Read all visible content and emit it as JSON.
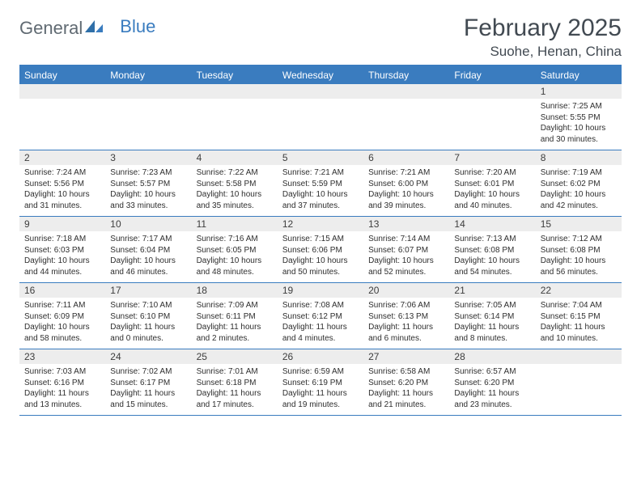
{
  "logo": {
    "text1": "General",
    "text2": "Blue"
  },
  "title": "February 2025",
  "location": "Suohe, Henan, China",
  "colors": {
    "brand_blue": "#3a7cbf",
    "header_bg": "#3a7cbf",
    "header_text": "#ffffff",
    "day_numbg": "#ededed",
    "text": "#2e2e2e",
    "title_text": "#424a52",
    "logo_gray": "#606a72"
  },
  "day_headers": [
    "Sunday",
    "Monday",
    "Tuesday",
    "Wednesday",
    "Thursday",
    "Friday",
    "Saturday"
  ],
  "layout": {
    "num_weeks": 5,
    "first_day_column": 6,
    "days_in_month": 28
  },
  "days": {
    "1": {
      "sunrise": "7:25 AM",
      "sunset": "5:55 PM",
      "daylight": "10 hours and 30 minutes."
    },
    "2": {
      "sunrise": "7:24 AM",
      "sunset": "5:56 PM",
      "daylight": "10 hours and 31 minutes."
    },
    "3": {
      "sunrise": "7:23 AM",
      "sunset": "5:57 PM",
      "daylight": "10 hours and 33 minutes."
    },
    "4": {
      "sunrise": "7:22 AM",
      "sunset": "5:58 PM",
      "daylight": "10 hours and 35 minutes."
    },
    "5": {
      "sunrise": "7:21 AM",
      "sunset": "5:59 PM",
      "daylight": "10 hours and 37 minutes."
    },
    "6": {
      "sunrise": "7:21 AM",
      "sunset": "6:00 PM",
      "daylight": "10 hours and 39 minutes."
    },
    "7": {
      "sunrise": "7:20 AM",
      "sunset": "6:01 PM",
      "daylight": "10 hours and 40 minutes."
    },
    "8": {
      "sunrise": "7:19 AM",
      "sunset": "6:02 PM",
      "daylight": "10 hours and 42 minutes."
    },
    "9": {
      "sunrise": "7:18 AM",
      "sunset": "6:03 PM",
      "daylight": "10 hours and 44 minutes."
    },
    "10": {
      "sunrise": "7:17 AM",
      "sunset": "6:04 PM",
      "daylight": "10 hours and 46 minutes."
    },
    "11": {
      "sunrise": "7:16 AM",
      "sunset": "6:05 PM",
      "daylight": "10 hours and 48 minutes."
    },
    "12": {
      "sunrise": "7:15 AM",
      "sunset": "6:06 PM",
      "daylight": "10 hours and 50 minutes."
    },
    "13": {
      "sunrise": "7:14 AM",
      "sunset": "6:07 PM",
      "daylight": "10 hours and 52 minutes."
    },
    "14": {
      "sunrise": "7:13 AM",
      "sunset": "6:08 PM",
      "daylight": "10 hours and 54 minutes."
    },
    "15": {
      "sunrise": "7:12 AM",
      "sunset": "6:08 PM",
      "daylight": "10 hours and 56 minutes."
    },
    "16": {
      "sunrise": "7:11 AM",
      "sunset": "6:09 PM",
      "daylight": "10 hours and 58 minutes."
    },
    "17": {
      "sunrise": "7:10 AM",
      "sunset": "6:10 PM",
      "daylight": "11 hours and 0 minutes."
    },
    "18": {
      "sunrise": "7:09 AM",
      "sunset": "6:11 PM",
      "daylight": "11 hours and 2 minutes."
    },
    "19": {
      "sunrise": "7:08 AM",
      "sunset": "6:12 PM",
      "daylight": "11 hours and 4 minutes."
    },
    "20": {
      "sunrise": "7:06 AM",
      "sunset": "6:13 PM",
      "daylight": "11 hours and 6 minutes."
    },
    "21": {
      "sunrise": "7:05 AM",
      "sunset": "6:14 PM",
      "daylight": "11 hours and 8 minutes."
    },
    "22": {
      "sunrise": "7:04 AM",
      "sunset": "6:15 PM",
      "daylight": "11 hours and 10 minutes."
    },
    "23": {
      "sunrise": "7:03 AM",
      "sunset": "6:16 PM",
      "daylight": "11 hours and 13 minutes."
    },
    "24": {
      "sunrise": "7:02 AM",
      "sunset": "6:17 PM",
      "daylight": "11 hours and 15 minutes."
    },
    "25": {
      "sunrise": "7:01 AM",
      "sunset": "6:18 PM",
      "daylight": "11 hours and 17 minutes."
    },
    "26": {
      "sunrise": "6:59 AM",
      "sunset": "6:19 PM",
      "daylight": "11 hours and 19 minutes."
    },
    "27": {
      "sunrise": "6:58 AM",
      "sunset": "6:20 PM",
      "daylight": "11 hours and 21 minutes."
    },
    "28": {
      "sunrise": "6:57 AM",
      "sunset": "6:20 PM",
      "daylight": "11 hours and 23 minutes."
    }
  },
  "labels": {
    "sunrise_prefix": "Sunrise: ",
    "sunset_prefix": "Sunset: ",
    "daylight_prefix": "Daylight: "
  }
}
